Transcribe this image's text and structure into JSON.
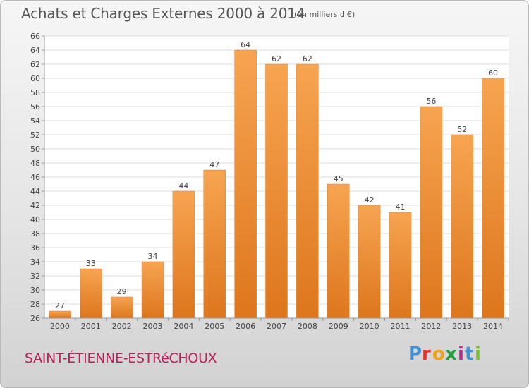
{
  "chart_data": {
    "type": "bar",
    "title": "Achats et Charges Externes 2000 à 2014",
    "subtitle": "(en milliers d'€)",
    "categories": [
      "2000",
      "2001",
      "2002",
      "2003",
      "2004",
      "2005",
      "2006",
      "2007",
      "2008",
      "2009",
      "2010",
      "2011",
      "2012",
      "2013",
      "2014"
    ],
    "values": [
      27,
      33,
      29,
      34,
      44,
      47,
      64,
      62,
      62,
      45,
      42,
      41,
      56,
      52,
      60
    ],
    "ylim": [
      26,
      66
    ],
    "yticks": [
      26,
      28,
      30,
      32,
      34,
      36,
      38,
      40,
      42,
      44,
      46,
      48,
      50,
      52,
      54,
      56,
      58,
      60,
      62,
      64,
      66
    ],
    "grid": true,
    "bar_color": "#f0913a"
  },
  "footer": {
    "commune": "SAINT-ÉTIENNE-ESTRéCHOUX",
    "brand": "Proxiti"
  }
}
